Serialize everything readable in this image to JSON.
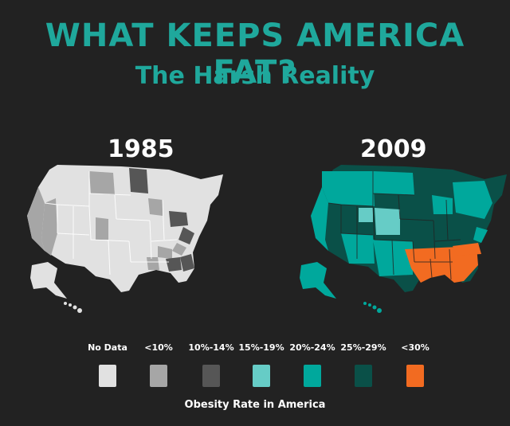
{
  "header": {
    "title": "WHAT KEEPS AMERICA FAT?",
    "subtitle": "The Harsh Reality"
  },
  "maps": [
    {
      "year": "1985"
    },
    {
      "year": "2009"
    }
  ],
  "legend": {
    "title": "Obesity Rate in America",
    "items": [
      {
        "label": "No Data",
        "color": "#e1e1e1"
      },
      {
        "label": "<10%",
        "color": "#a6a6a6"
      },
      {
        "label": "10%-14%",
        "color": "#565656"
      },
      {
        "label": "15%-19%",
        "color": "#66ccc6"
      },
      {
        "label": "20%-24%",
        "color": "#00a89c"
      },
      {
        "label": "25%-29%",
        "color": "#0a5048"
      },
      {
        "label": "<30%",
        "color": "#f26b21"
      }
    ]
  }
}
